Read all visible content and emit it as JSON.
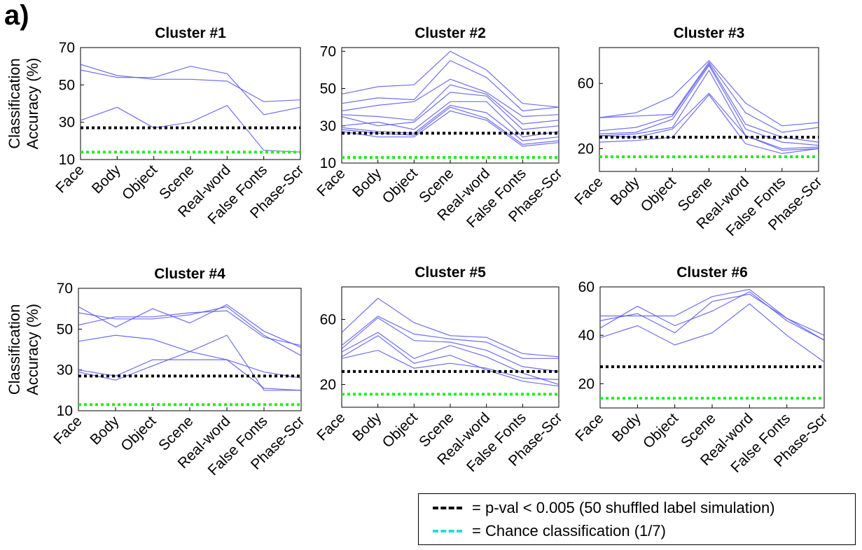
{
  "panel_label": "a)",
  "chart_data": [
    {
      "type": "line",
      "title": "Cluster #1",
      "ylabel": "Classification Accuracy (%)",
      "categories": [
        "Face",
        "Body",
        "Object",
        "Scene",
        "Real-word",
        "False Fonts",
        "Phase-Scr"
      ],
      "ylim": [
        10,
        70
      ],
      "yticks": [
        10,
        30,
        50,
        70
      ],
      "grid": false,
      "series": [
        {
          "values": [
            61,
            55,
            53,
            53,
            52,
            41,
            42
          ]
        },
        {
          "values": [
            58,
            54,
            54,
            60,
            56,
            34,
            38
          ]
        },
        {
          "values": [
            31,
            38,
            27,
            30,
            39,
            15,
            14
          ]
        }
      ],
      "hlines": [
        {
          "y": 27,
          "color": "#000000"
        },
        {
          "y": 14,
          "color": "#22ee22"
        }
      ]
    },
    {
      "type": "line",
      "title": "Cluster #2",
      "ylabel": "",
      "categories": [
        "Face",
        "Body",
        "Object",
        "Scene",
        "Real-word",
        "False Fonts",
        "Phase-Scr"
      ],
      "ylim": [
        10,
        72
      ],
      "yticks": [
        10,
        30,
        50,
        70
      ],
      "grid": false,
      "series": [
        {
          "values": [
            47,
            51,
            52,
            70,
            60,
            42,
            40
          ]
        },
        {
          "values": [
            42,
            45,
            44,
            65,
            56,
            38,
            40
          ]
        },
        {
          "values": [
            38,
            41,
            43,
            55,
            48,
            35,
            36
          ]
        },
        {
          "values": [
            36,
            35,
            33,
            52,
            47,
            31,
            33
          ]
        },
        {
          "values": [
            35,
            30,
            32,
            48,
            46,
            28,
            30
          ]
        },
        {
          "values": [
            30,
            32,
            28,
            43,
            43,
            24,
            27
          ]
        },
        {
          "values": [
            29,
            27,
            26,
            41,
            37,
            22,
            24
          ]
        },
        {
          "values": [
            28,
            26,
            25,
            40,
            34,
            20,
            22
          ]
        },
        {
          "values": [
            27,
            24,
            24,
            38,
            33,
            19,
            21
          ]
        }
      ],
      "hlines": [
        {
          "y": 26,
          "color": "#000000"
        },
        {
          "y": 13,
          "color": "#22ee22"
        }
      ]
    },
    {
      "type": "line",
      "title": "Cluster #3",
      "ylabel": "",
      "categories": [
        "Face",
        "Body",
        "Object",
        "Scene",
        "Real-word",
        "False Fonts",
        "Phase-Scr"
      ],
      "ylim": [
        6,
        82
      ],
      "yticks": [
        20,
        60
      ],
      "grid": false,
      "series": [
        {
          "values": [
            39,
            42,
            52,
            74,
            48,
            34,
            36
          ]
        },
        {
          "values": [
            39,
            40,
            41,
            73,
            42,
            30,
            33
          ]
        },
        {
          "values": [
            31,
            33,
            40,
            72,
            35,
            27,
            24
          ]
        },
        {
          "values": [
            29,
            30,
            38,
            71,
            32,
            24,
            22
          ]
        },
        {
          "values": [
            28,
            29,
            33,
            68,
            28,
            20,
            21
          ]
        },
        {
          "values": [
            28,
            27,
            32,
            54,
            28,
            19,
            20
          ]
        },
        {
          "values": [
            24,
            25,
            27,
            53,
            23,
            17,
            20
          ]
        }
      ],
      "hlines": [
        {
          "y": 27,
          "color": "#000000"
        },
        {
          "y": 15,
          "color": "#22ee22"
        }
      ]
    },
    {
      "type": "line",
      "title": "Cluster #4",
      "ylabel": "Classification Accuracy (%)",
      "categories": [
        "Face",
        "Body",
        "Object",
        "Scene",
        "Real-word",
        "False Fonts",
        "Phase-Scr"
      ],
      "ylim": [
        10,
        70
      ],
      "yticks": [
        10,
        30,
        50,
        70
      ],
      "grid": false,
      "series": [
        {
          "values": [
            61,
            51,
            60,
            53,
            62,
            49,
            41
          ]
        },
        {
          "values": [
            58,
            55,
            55,
            57,
            61,
            47,
            37
          ]
        },
        {
          "values": [
            52,
            56,
            56,
            58,
            59,
            46,
            42
          ]
        },
        {
          "values": [
            44,
            47,
            45,
            39,
            35,
            29,
            26
          ]
        },
        {
          "values": [
            30,
            27,
            35,
            35,
            35,
            21,
            20
          ]
        },
        {
          "values": [
            29,
            25,
            32,
            39,
            47,
            20,
            20
          ]
        }
      ],
      "hlines": [
        {
          "y": 27,
          "color": "#000000"
        },
        {
          "y": 13,
          "color": "#22ee22"
        }
      ]
    },
    {
      "type": "line",
      "title": "Cluster #5",
      "ylabel": "",
      "categories": [
        "Face",
        "Body",
        "Object",
        "Scene",
        "Real-word",
        "False Fonts",
        "Phase-Scr"
      ],
      "ylim": [
        6,
        80
      ],
      "yticks": [
        20,
        60
      ],
      "grid": false,
      "series": [
        {
          "values": [
            52,
            73,
            58,
            50,
            49,
            39,
            37
          ]
        },
        {
          "values": [
            44,
            62,
            51,
            48,
            46,
            36,
            36
          ]
        },
        {
          "values": [
            42,
            61,
            47,
            46,
            41,
            31,
            28
          ]
        },
        {
          "values": [
            40,
            52,
            36,
            44,
            37,
            27,
            20
          ]
        },
        {
          "values": [
            37,
            50,
            33,
            38,
            29,
            22,
            19
          ]
        },
        {
          "values": [
            36,
            41,
            30,
            33,
            30,
            24,
            23
          ]
        }
      ],
      "hlines": [
        {
          "y": 28,
          "color": "#000000"
        },
        {
          "y": 14,
          "color": "#22ee22"
        }
      ]
    },
    {
      "type": "line",
      "title": "Cluster #6",
      "ylabel": "",
      "categories": [
        "Face",
        "Body",
        "Object",
        "Scene",
        "Real-word",
        "False Fonts",
        "Phase-Scr"
      ],
      "ylim": [
        10,
        60
      ],
      "yticks": [
        20,
        40,
        60
      ],
      "grid": false,
      "series": [
        {
          "values": [
            48,
            48,
            48,
            56,
            59,
            47,
            40
          ]
        },
        {
          "values": [
            46,
            49,
            41,
            54,
            57,
            47,
            38
          ]
        },
        {
          "values": [
            43,
            52,
            44,
            50,
            58,
            46,
            38
          ]
        },
        {
          "values": [
            39,
            44,
            36,
            41,
            53,
            40,
            29
          ]
        }
      ],
      "hlines": [
        {
          "y": 27,
          "color": "#000000"
        },
        {
          "y": 14,
          "color": "#22ee22"
        }
      ]
    }
  ],
  "legend": {
    "items": [
      {
        "label": "= p-val < 0.005 (50 shuffled label simulation)",
        "color": "#000000"
      },
      {
        "label": "= Chance classification (1/7)",
        "color": "#22dddd"
      }
    ]
  },
  "colors": {
    "series": "#5555ee",
    "axis": "#000000"
  }
}
